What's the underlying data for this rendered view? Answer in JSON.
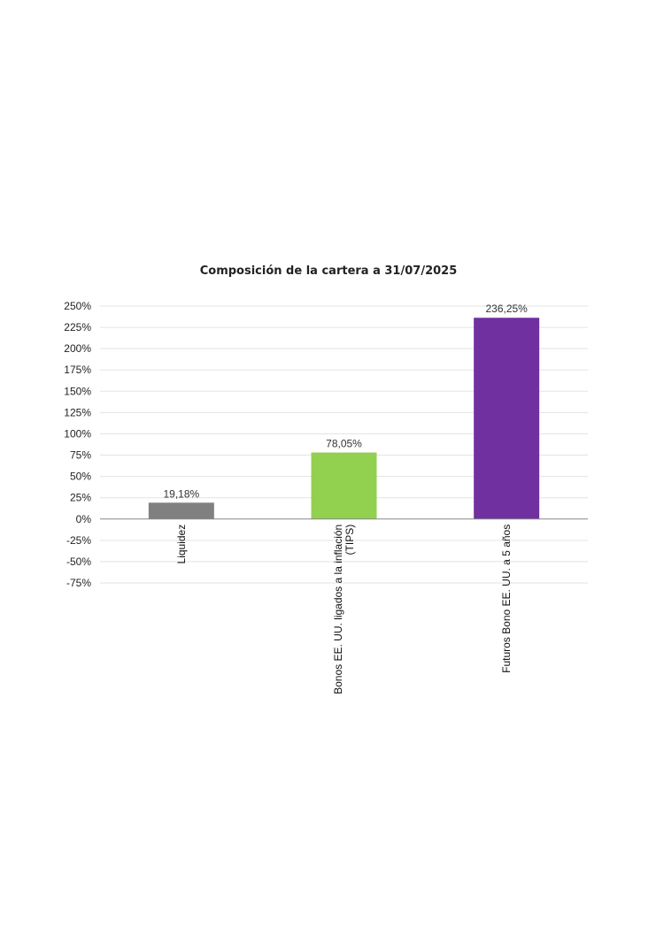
{
  "chart_data": {
    "type": "bar",
    "title": "Composición de la cartera a 31/07/2025",
    "categories": [
      [
        "Liquidez"
      ],
      [
        "Bonos EE. UU. ligados a la inflación",
        "(TIPS)"
      ],
      [
        "Futuros Bono EE. UU. a 5 años"
      ]
    ],
    "values": [
      19.18,
      78.05,
      236.25
    ],
    "data_labels": [
      "19,18%",
      "78,05%",
      "236,25%"
    ],
    "colors": [
      "#808080",
      "#92d050",
      "#7030a0"
    ],
    "ylim": [
      -75,
      250
    ],
    "yticks": [
      250,
      225,
      200,
      175,
      150,
      125,
      100,
      75,
      50,
      25,
      0,
      -25,
      -50,
      -75
    ],
    "ytick_labels": [
      "250%",
      "225%",
      "200%",
      "175%",
      "150%",
      "125%",
      "100%",
      "75%",
      "50%",
      "25%",
      "0%",
      "-25%",
      "-50%",
      "-75%"
    ],
    "grid": true,
    "xlabel": "",
    "ylabel": ""
  }
}
